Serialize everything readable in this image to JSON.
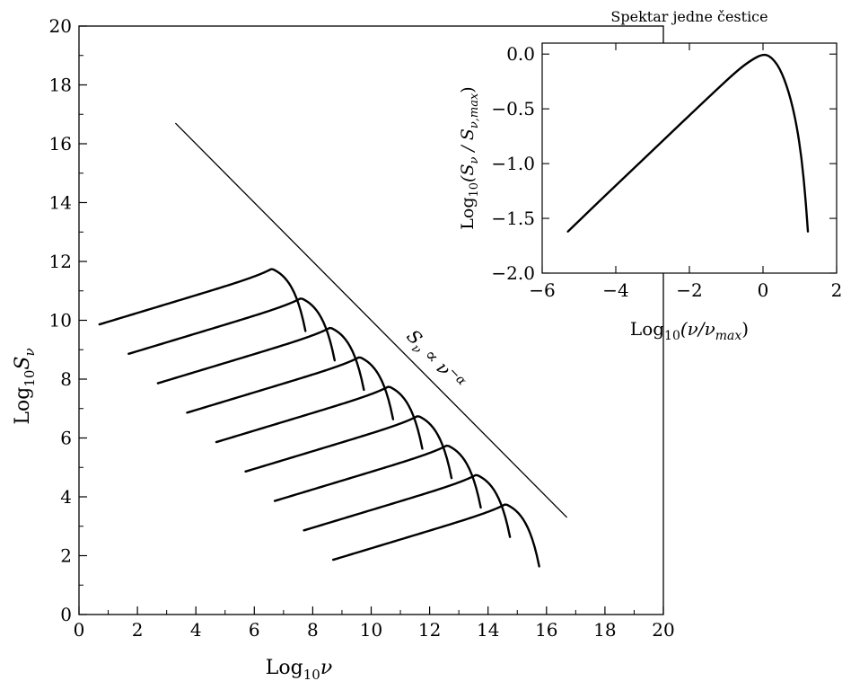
{
  "chart_data": [
    {
      "type": "line",
      "xlabel": {
        "base": "Log",
        "sub": "10",
        "var": "ν"
      },
      "ylabel": {
        "base": "Log",
        "sub": "10",
        "var": "S",
        "varsub": "ν"
      },
      "xlim": [
        0,
        20
      ],
      "ylim": [
        0,
        20
      ],
      "xticks": [
        0,
        2,
        4,
        6,
        8,
        10,
        12,
        14,
        16,
        18,
        20
      ],
      "yticks": [
        0,
        2,
        4,
        6,
        8,
        10,
        12,
        14,
        16,
        18,
        20
      ],
      "grid": false,
      "annotation": {
        "text": "S",
        "sub": "ν",
        "rest": " ∝ ν",
        "sup": "−α"
      },
      "envelope": {
        "x": [
          3.3,
          16.7
        ],
        "y": [
          16.7,
          3.3
        ]
      },
      "series": [
        {
          "x_start": 0.7,
          "x_peak": 6.6,
          "x_end": 7.75,
          "y_peak": 11.75
        },
        {
          "x_start": 1.7,
          "x_peak": 7.6,
          "x_end": 8.75,
          "y_peak": 10.75
        },
        {
          "x_start": 2.7,
          "x_peak": 8.6,
          "x_end": 9.75,
          "y_peak": 9.75
        },
        {
          "x_start": 3.7,
          "x_peak": 9.6,
          "x_end": 10.75,
          "y_peak": 8.75
        },
        {
          "x_start": 4.7,
          "x_peak": 10.6,
          "x_end": 11.75,
          "y_peak": 7.75
        },
        {
          "x_start": 5.7,
          "x_peak": 11.6,
          "x_end": 12.75,
          "y_peak": 6.75
        },
        {
          "x_start": 6.7,
          "x_peak": 12.6,
          "x_end": 13.75,
          "y_peak": 5.75
        },
        {
          "x_start": 7.7,
          "x_peak": 13.6,
          "x_end": 14.75,
          "y_peak": 4.75
        },
        {
          "x_start": 8.7,
          "x_peak": 14.6,
          "x_end": 15.75,
          "y_peak": 3.75
        }
      ]
    },
    {
      "type": "line",
      "title": "Spektar jedne čestice",
      "xlabel": {
        "base": "Log",
        "sub": "10",
        "var": "(ν/ν",
        "varsub": "max",
        "tail": ")"
      },
      "ylabel": {
        "base": "Log",
        "sub": "10",
        "var": "(S",
        "varsub": "ν",
        "mid": " / S",
        "midsub": "ν,max",
        "tail": ")"
      },
      "xlim": [
        -6,
        2
      ],
      "ylim": [
        -2.0,
        0.1
      ],
      "xticks": [
        -6,
        -4,
        -2,
        0,
        2
      ],
      "xtick_labels": [
        "−6",
        "−4",
        "−2",
        "0",
        "2"
      ],
      "yticks": [
        0.0,
        -0.5,
        -1.0,
        -1.5,
        -2.0
      ],
      "ytick_labels": [
        "0.0",
        "−0.5",
        "−1.0",
        "−1.5",
        "−2.0"
      ],
      "grid": false,
      "series": [
        {
          "x": [
            -5.3,
            -4.5,
            -3.5,
            -2.5,
            -1.5,
            -0.7,
            -0.3,
            0.0,
            0.2,
            0.45,
            0.7,
            0.9,
            1.05,
            1.15,
            1.22
          ],
          "y": [
            -1.62,
            -1.36,
            -1.04,
            -0.72,
            -0.4,
            -0.15,
            -0.05,
            0.0,
            -0.02,
            -0.12,
            -0.34,
            -0.62,
            -0.95,
            -1.3,
            -1.62
          ]
        }
      ]
    }
  ]
}
